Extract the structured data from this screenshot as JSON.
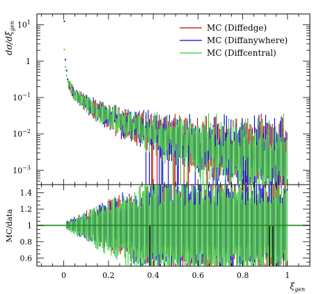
{
  "chart_data": {
    "type": "scatter",
    "x_label": "ξ",
    "x_label_sub": "gen",
    "upper": {
      "y_label": "dσ/dξ",
      "y_label_sub": "gen",
      "y_scale": "log",
      "y_ticks": [
        {
          "value": 10,
          "base": "10",
          "exp": "1"
        },
        {
          "value": 1,
          "base": "1",
          "exp": ""
        },
        {
          "value": 0.1,
          "base": "10",
          "exp": "−1"
        },
        {
          "value": 0.01,
          "base": "10",
          "exp": "−2"
        },
        {
          "value": 0.001,
          "base": "10",
          "exp": "−3"
        }
      ],
      "ylim": [
        0.0004,
        20
      ]
    },
    "lower": {
      "y_label": "MC/data",
      "y_ticks": [
        "0.6",
        "0.8",
        "1",
        "1.2",
        "1.4"
      ],
      "y_tick_values": [
        0.6,
        0.8,
        1.0,
        1.2,
        1.4
      ],
      "ylim": [
        0.5,
        1.5
      ],
      "reference_line": 1.0
    },
    "x_ticks": [
      "0",
      "0.2",
      "0.4",
      "0.6",
      "0.8",
      "1"
    ],
    "x_tick_values": [
      0,
      0.2,
      0.4,
      0.6,
      0.8,
      1.0
    ],
    "xlim": [
      -0.12,
      1.1
    ],
    "legend_position": "top-right",
    "series": [
      {
        "name": "MC (Diffedge)",
        "color": "#cc0000"
      },
      {
        "name": "MC (Diffanywhere)",
        "color": "#0000cc"
      },
      {
        "name": "MC (Diffcentral)",
        "color": "#33cc33"
      }
    ],
    "first_points": {
      "x": [
        0.0025,
        0.0075,
        0.0125,
        0.0175
      ],
      "anywhere": [
        12.5,
        1.1,
        0.55,
        0.32
      ],
      "central": [
        2.1,
        0.7,
        0.4,
        0.28
      ]
    },
    "trend": {
      "x": [
        0.02,
        0.05,
        0.1,
        0.15,
        0.2,
        0.3,
        0.4,
        0.5,
        0.6,
        0.7,
        0.8,
        0.9,
        1.0
      ],
      "y": [
        0.25,
        0.12,
        0.07,
        0.045,
        0.03,
        0.017,
        0.011,
        0.0075,
        0.005,
        0.004,
        0.003,
        0.0026,
        0.002
      ]
    }
  }
}
